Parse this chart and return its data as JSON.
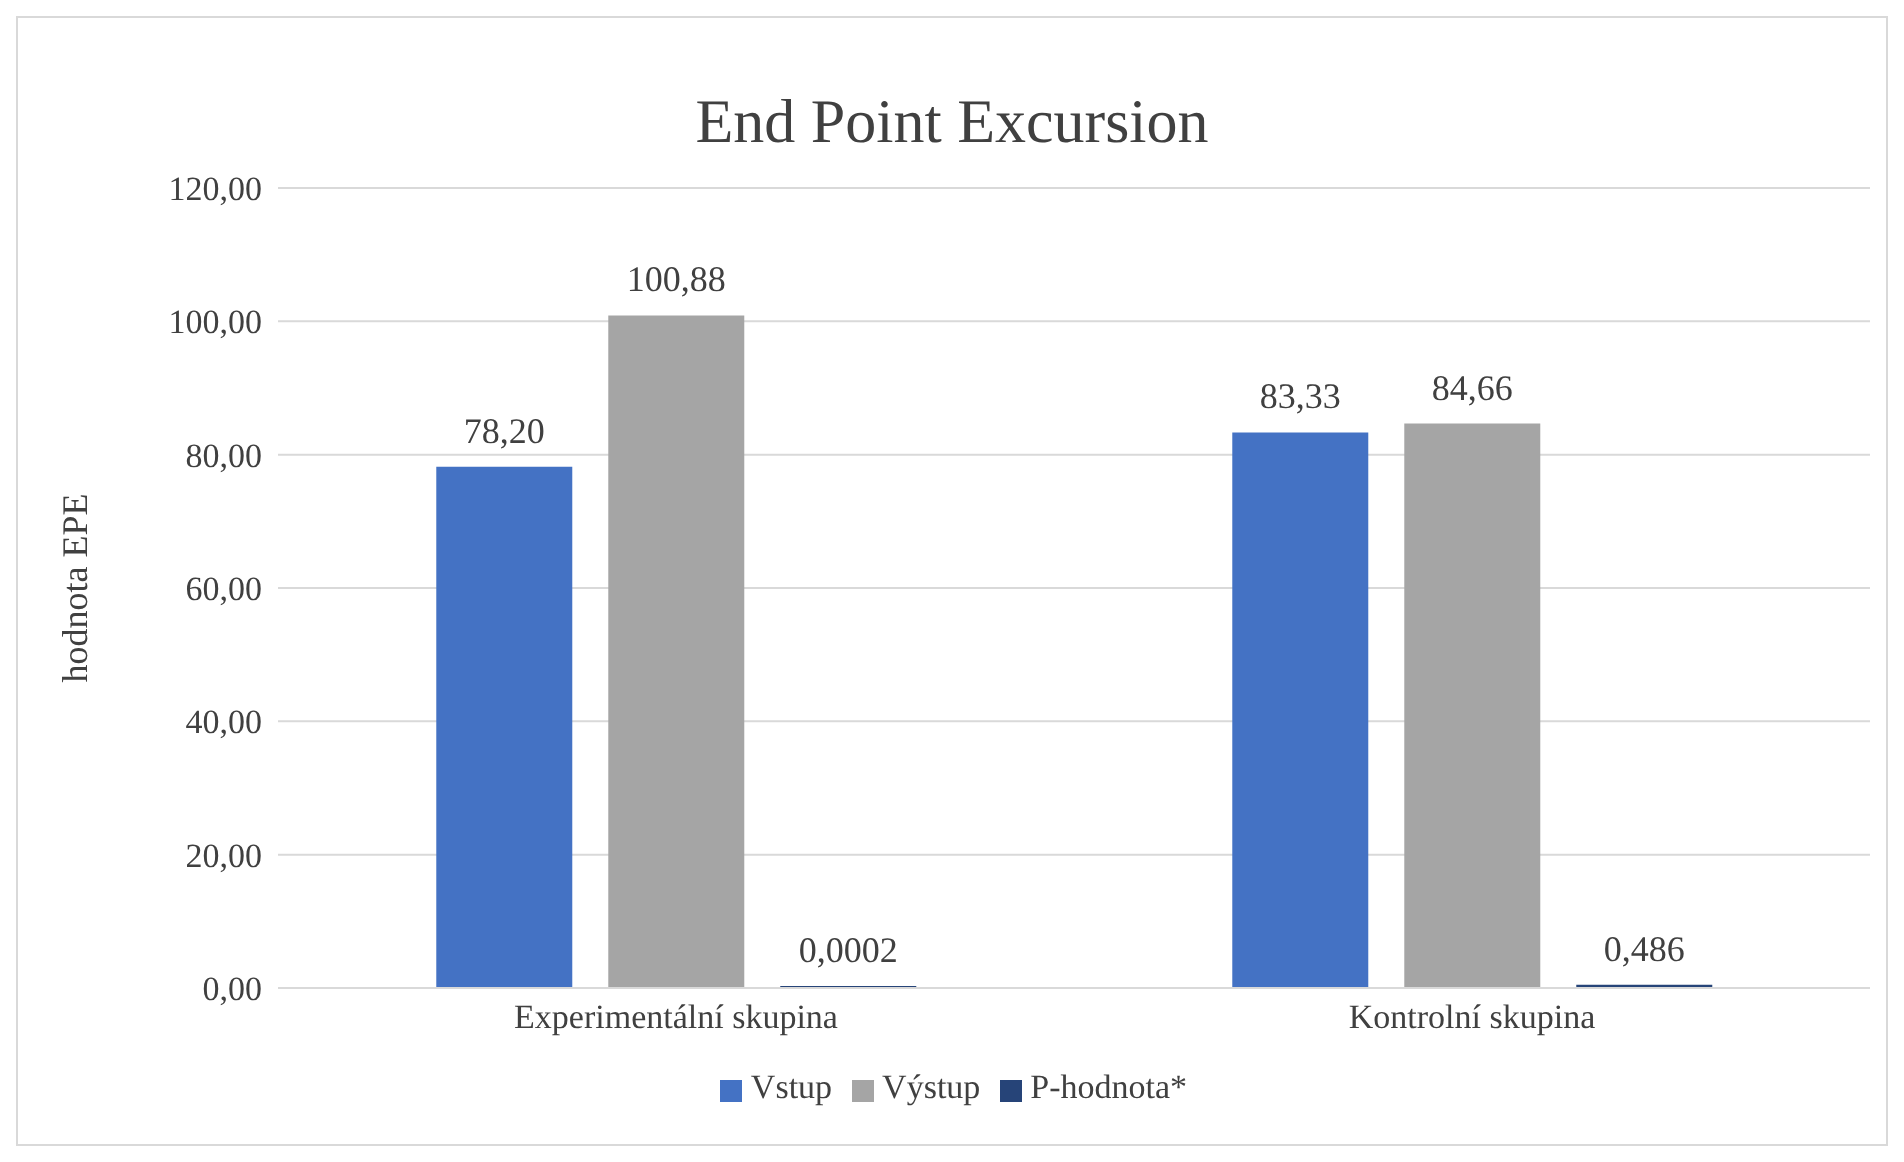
{
  "chart_data": {
    "type": "bar",
    "title": "End Point Excursion",
    "ylabel": "hodnota EPE",
    "categories": [
      "Experimentální skupina",
      "Kontrolní skupina"
    ],
    "series": [
      {
        "name": "Vstup",
        "color": "#4472c4",
        "values": [
          78.2,
          83.33
        ],
        "value_labels": [
          "78,20",
          "83,33"
        ]
      },
      {
        "name": "Výstup",
        "color": "#a5a5a5",
        "values": [
          100.88,
          84.66
        ],
        "value_labels": [
          "100,88",
          "84,66"
        ]
      },
      {
        "name": "P-hodnota*",
        "color": "#264478",
        "values": [
          0.0002,
          0.486
        ],
        "value_labels": [
          "0,0002",
          "0,486"
        ]
      }
    ],
    "ylim": [
      0,
      120
    ],
    "yticks": [
      {
        "value": 0,
        "label": "0,00"
      },
      {
        "value": 20,
        "label": "20,00"
      },
      {
        "value": 40,
        "label": "40,00"
      },
      {
        "value": 60,
        "label": "60,00"
      },
      {
        "value": 80,
        "label": "80,00"
      },
      {
        "value": 100,
        "label": "100,00"
      },
      {
        "value": 120,
        "label": "120,00"
      }
    ],
    "grid": "y",
    "legend": "bottom"
  }
}
